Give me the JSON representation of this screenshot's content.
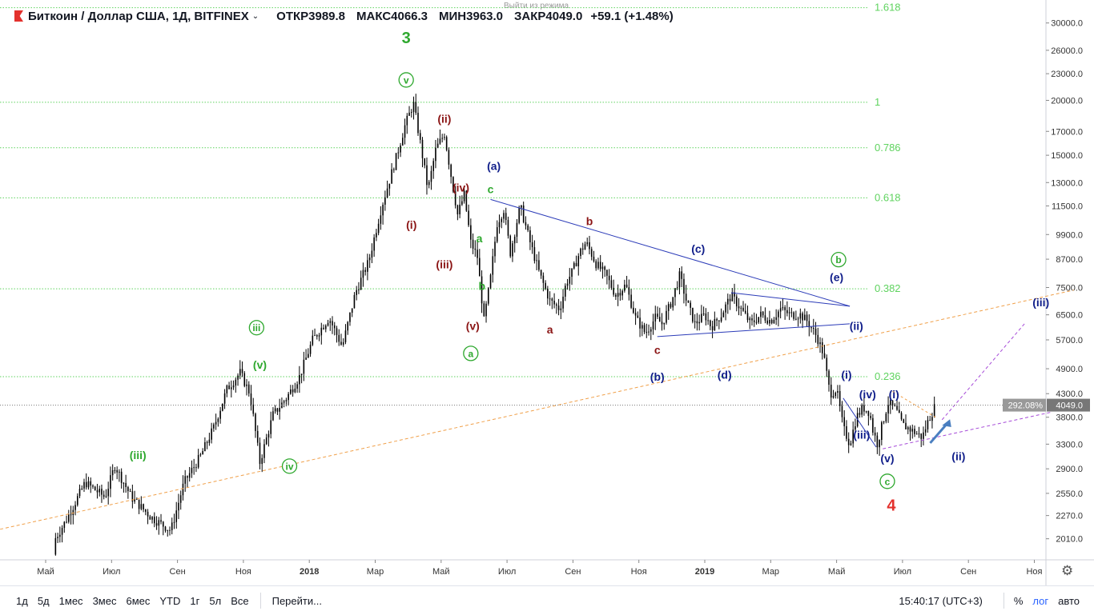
{
  "header": {
    "symbol": "Биткоин / Доллар США, 1Д, BITFINEX",
    "open": "ОТКР3989.8",
    "high": "МАКС4066.3",
    "low": "МИН3963.0",
    "close": "ЗАКР4049.0",
    "change": "+59.1 (+1.48%)",
    "exit_mode": "Выйти из режима",
    "colors": {
      "logo": "#e3312d"
    }
  },
  "bottom_bar": {
    "timeframes": [
      "1д",
      "5д",
      "1мес",
      "3мес",
      "6мес",
      "YTD",
      "1г",
      "5л",
      "Все"
    ],
    "goto": "Перейти...",
    "time": "15:40:17 (UTC+3)",
    "percent": "%",
    "log": "лог",
    "auto": "авто",
    "settings_icon": "gear-icon"
  },
  "chart_data": {
    "type": "candlestick",
    "scale": "log",
    "x_ticks": [
      "Май",
      "Июл",
      "Сен",
      "Ноя",
      "2018",
      "Мар",
      "Май",
      "Июл",
      "Сен",
      "Ноя",
      "2019",
      "Мар",
      "Май",
      "Июл",
      "Сен",
      "Ноя"
    ],
    "y_ticks": [
      30000,
      26000,
      23000,
      20000,
      17000,
      15000,
      13000,
      11500,
      9900,
      8700,
      7500,
      6500,
      5700,
      4900,
      4300,
      3800,
      3300,
      2900,
      2550,
      2270,
      2010
    ],
    "y_tick_labels": [
      "30000.0",
      "26000.0",
      "23000.0",
      "20000.0",
      "17000.0",
      "15000.0",
      "13000.0",
      "11500.0",
      "9900.0",
      "8700.0",
      "7500.0",
      "6500.0",
      "5700.0",
      "4900.0",
      "4300.0",
      "3800.0",
      "3300.0",
      "2900.0",
      "2550.0",
      "2270.0",
      "2010.0"
    ],
    "ylim": [
      1800,
      33000
    ],
    "price_label": "4049.0",
    "percent_label": "292.08%",
    "last_price": 4049,
    "price_path": [
      [
        0.0,
        1850
      ],
      [
        0.3,
        2200
      ],
      [
        0.6,
        2700
      ],
      [
        0.9,
        2500
      ],
      [
        1.05,
        2950
      ],
      [
        1.3,
        2500
      ],
      [
        1.6,
        2250
      ],
      [
        1.9,
        2100
      ],
      [
        2.1,
        2700
      ],
      [
        2.35,
        3100
      ],
      [
        2.55,
        3600
      ],
      [
        2.75,
        4400
      ],
      [
        2.95,
        4800
      ],
      [
        3.1,
        4300
      ],
      [
        3.25,
        3000
      ],
      [
        3.45,
        3850
      ],
      [
        3.65,
        4200
      ],
      [
        3.85,
        4700
      ],
      [
        4.05,
        5700
      ],
      [
        4.3,
        6400
      ],
      [
        4.5,
        5500
      ],
      [
        4.7,
        7300
      ],
      [
        4.9,
        8600
      ],
      [
        5.1,
        11500
      ],
      [
        5.3,
        14500
      ],
      [
        5.45,
        17500
      ],
      [
        5.58,
        19700
      ],
      [
        5.7,
        15500
      ],
      [
        5.8,
        12500
      ],
      [
        5.92,
        15500
      ],
      [
        6.05,
        16800
      ],
      [
        6.15,
        13500
      ],
      [
        6.25,
        11000
      ],
      [
        6.35,
        12200
      ],
      [
        6.45,
        9500
      ],
      [
        6.55,
        8800
      ],
      [
        6.65,
        6300
      ],
      [
        6.75,
        7900
      ],
      [
        6.85,
        10500
      ],
      [
        6.95,
        11300
      ],
      [
        7.05,
        9000
      ],
      [
        7.2,
        11500
      ],
      [
        7.35,
        9500
      ],
      [
        7.5,
        8000
      ],
      [
        7.65,
        7000
      ],
      [
        7.8,
        6700
      ],
      [
        7.9,
        7700
      ],
      [
        8.0,
        8200
      ],
      [
        8.1,
        9000
      ],
      [
        8.2,
        9500
      ],
      [
        8.35,
        8500
      ],
      [
        8.5,
        8000
      ],
      [
        8.65,
        7200
      ],
      [
        8.8,
        7600
      ],
      [
        8.95,
        6400
      ],
      [
        9.1,
        5900
      ],
      [
        9.25,
        6400
      ],
      [
        9.35,
        6200
      ],
      [
        9.5,
        7000
      ],
      [
        9.62,
        8000
      ],
      [
        9.72,
        7000
      ],
      [
        9.85,
        6200
      ],
      [
        10.0,
        6500
      ],
      [
        10.1,
        6100
      ],
      [
        10.25,
        6500
      ],
      [
        10.4,
        7200
      ],
      [
        10.55,
        6700
      ],
      [
        10.7,
        6200
      ],
      [
        10.85,
        6500
      ],
      [
        11.0,
        6300
      ],
      [
        11.15,
        6700
      ],
      [
        11.3,
        6500
      ],
      [
        11.45,
        6500
      ],
      [
        11.55,
        6300
      ],
      [
        11.7,
        5800
      ],
      [
        11.8,
        5300
      ],
      [
        11.9,
        4300
      ],
      [
        12.0,
        4400
      ],
      [
        12.1,
        3600
      ],
      [
        12.2,
        3300
      ],
      [
        12.3,
        3800
      ],
      [
        12.4,
        4000
      ],
      [
        12.5,
        3900
      ],
      [
        12.55,
        3550
      ],
      [
        12.62,
        3300
      ],
      [
        12.68,
        3600
      ],
      [
        12.78,
        4100
      ],
      [
        12.9,
        3950
      ],
      [
        13.0,
        3650
      ],
      [
        13.1,
        3580
      ],
      [
        13.2,
        3500
      ],
      [
        13.3,
        3420
      ],
      [
        13.38,
        3700
      ],
      [
        13.45,
        3900
      ],
      [
        13.5,
        4049
      ]
    ],
    "wave_labels": [
      {
        "text": "3",
        "color": "#2ea82e",
        "x": 5.47,
        "price": 27000
      },
      {
        "text": "v",
        "color": "#2ea82e",
        "circle": true,
        "x": 5.47,
        "price": 21800
      },
      {
        "text": "(ii)",
        "color": "#8b1515",
        "x": 6.05,
        "price": 17800
      },
      {
        "text": "(iv)",
        "color": "#8b1515",
        "x": 6.3,
        "price": 12400
      },
      {
        "text": "(i)",
        "color": "#8b1515",
        "x": 5.55,
        "price": 10200
      },
      {
        "text": "(iii)",
        "color": "#8b1515",
        "x": 6.05,
        "price": 8300
      },
      {
        "text": "(v)",
        "color": "#8b1515",
        "x": 6.48,
        "price": 6000
      },
      {
        "text": "a",
        "color": "#2ea82e",
        "x": 6.58,
        "price": 9500
      },
      {
        "text": "b",
        "color": "#2ea82e",
        "x": 6.62,
        "price": 7400
      },
      {
        "text": "a",
        "color": "#2ea82e",
        "circle": true,
        "x": 6.45,
        "price": 5200
      },
      {
        "text": "c",
        "color": "#2ea82e",
        "x": 6.75,
        "price": 12300
      },
      {
        "text": "(a)",
        "color": "#101e8a",
        "x": 6.8,
        "price": 13900
      },
      {
        "text": "a",
        "color": "#8b1515",
        "x": 7.65,
        "price": 5900
      },
      {
        "text": "b",
        "color": "#8b1515",
        "x": 8.25,
        "price": 10400
      },
      {
        "text": "c",
        "color": "#8b1515",
        "x": 9.28,
        "price": 5300
      },
      {
        "text": "(b)",
        "color": "#101e8a",
        "x": 9.28,
        "price": 4600
      },
      {
        "text": "(c)",
        "color": "#101e8a",
        "x": 9.9,
        "price": 9000
      },
      {
        "text": "(d)",
        "color": "#101e8a",
        "x": 10.3,
        "price": 4650
      },
      {
        "text": "(e)",
        "color": "#101e8a",
        "x": 12.0,
        "price": 7750
      },
      {
        "text": "b",
        "color": "#2ea82e",
        "circle": true,
        "x": 12.03,
        "price": 8500
      },
      {
        "text": "(ii)",
        "color": "#101e8a",
        "x": 12.3,
        "price": 6000
      },
      {
        "text": "(i)",
        "color": "#101e8a",
        "x": 12.15,
        "price": 4650
      },
      {
        "text": "(iv)",
        "color": "#101e8a",
        "x": 12.47,
        "price": 4200
      },
      {
        "text": "(i)",
        "color": "#101e8a",
        "x": 12.87,
        "price": 4200
      },
      {
        "text": "(iii)",
        "color": "#101e8a",
        "x": 12.38,
        "price": 3400
      },
      {
        "text": "(v)",
        "color": "#101e8a",
        "x": 12.77,
        "price": 3000
      },
      {
        "text": "c",
        "color": "#2ea82e",
        "circle": true,
        "x": 12.77,
        "price": 2660
      },
      {
        "text": "4",
        "color": "#e3312d",
        "x": 12.83,
        "price": 2330
      },
      {
        "text": "(ii)",
        "color": "#101e8a",
        "x": 13.85,
        "price": 3030
      },
      {
        "text": "(iii)",
        "color": "#101e8a",
        "x": 15.1,
        "price": 6800
      },
      {
        "text": "(iii)",
        "color": "#2ea82e",
        "x": 1.4,
        "price": 3050
      },
      {
        "text": "(v)",
        "color": "#2ea82e",
        "x": 3.25,
        "price": 4900
      },
      {
        "text": "iii",
        "color": "#2ea82e",
        "circle": true,
        "x": 3.2,
        "price": 5950
      },
      {
        "text": "iv",
        "color": "#2ea82e",
        "circle": true,
        "x": 3.7,
        "price": 2880
      }
    ],
    "fib_levels": [
      {
        "label": "1.618",
        "price": 32500
      },
      {
        "label": "1",
        "price": 19800
      },
      {
        "label": "0.786",
        "price": 15600
      },
      {
        "label": "0.618",
        "price": 12000
      },
      {
        "label": "0.382",
        "price": 7450
      },
      {
        "label": "0.236",
        "price": 4700
      }
    ],
    "colors": {
      "candles": "#000000",
      "fib": "#5fd35f",
      "trend": "#2b3bb8",
      "fib_text": "#5fd35f",
      "orange": "#f0a04a",
      "purple": "#a64bd8",
      "arrow": "#4a7fc0"
    }
  }
}
